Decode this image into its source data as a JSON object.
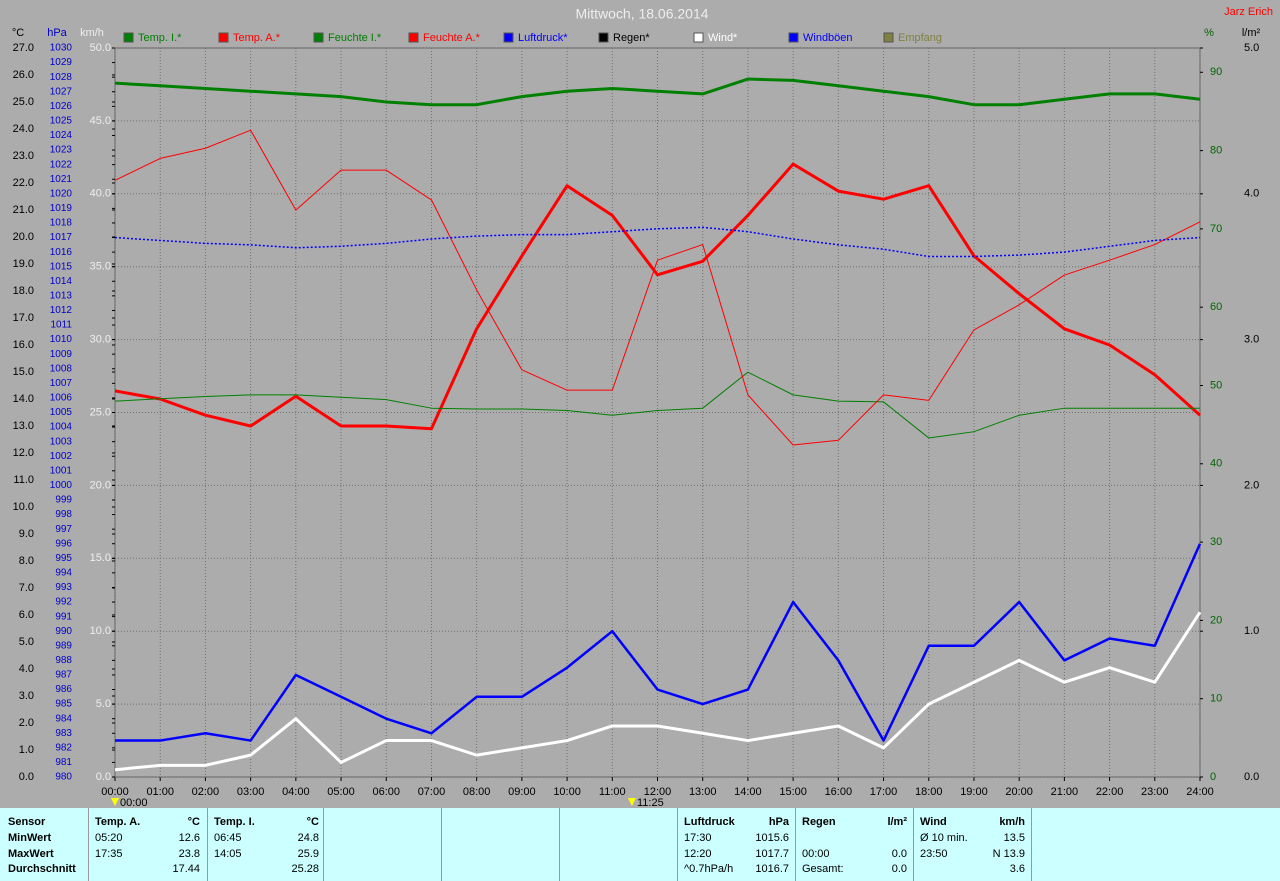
{
  "chart_data": {
    "type": "line",
    "title": "Mittwoch, 18.06.2014",
    "author": "Jarz Erich",
    "markers": [
      "00:00",
      "11:25"
    ],
    "xlim": [
      0,
      24
    ],
    "xticks": [
      {
        "value": 0,
        "label": "00:00"
      },
      {
        "value": 1,
        "label": "01:00"
      },
      {
        "value": 2,
        "label": "02:00"
      },
      {
        "value": 3,
        "label": "03:00"
      },
      {
        "value": 4,
        "label": "04:00"
      },
      {
        "value": 5,
        "label": "05:00"
      },
      {
        "value": 6,
        "label": "06:00"
      },
      {
        "value": 7,
        "label": "07:00"
      },
      {
        "value": 8,
        "label": "08:00"
      },
      {
        "value": 9,
        "label": "09:00"
      },
      {
        "value": 10,
        "label": "10:00"
      },
      {
        "value": 11,
        "label": "11:00"
      },
      {
        "value": 12,
        "label": "12:00"
      },
      {
        "value": 13,
        "label": "13:00"
      },
      {
        "value": 14,
        "label": "14:00"
      },
      {
        "value": 15,
        "label": "15:00"
      },
      {
        "value": 16,
        "label": "16:00"
      },
      {
        "value": 17,
        "label": "17:00"
      },
      {
        "value": 18,
        "label": "18:00"
      },
      {
        "value": 19,
        "label": "19:00"
      },
      {
        "value": 20,
        "label": "20:00"
      },
      {
        "value": 21,
        "label": "21:00"
      },
      {
        "value": 22,
        "label": "22:00"
      },
      {
        "value": 23,
        "label": "23:00"
      },
      {
        "value": 24,
        "label": "24:00"
      }
    ],
    "x": [
      0,
      1,
      2,
      3,
      4,
      5,
      6,
      7,
      8,
      9,
      10,
      11,
      12,
      13,
      14,
      15,
      16,
      17,
      18,
      19,
      20,
      21,
      22,
      23,
      24
    ],
    "grid": true,
    "grid_axis": "kmh",
    "yaxes": {
      "temp": {
        "unit": "°C",
        "side": "left",
        "color": "#000000",
        "lim": [
          0,
          27
        ],
        "ticks": [
          {
            "value": 0,
            "label": "0.0"
          },
          {
            "value": 1,
            "label": "1.0"
          },
          {
            "value": 2,
            "label": "2.0"
          },
          {
            "value": 3,
            "label": "3.0"
          },
          {
            "value": 4,
            "label": "4.0"
          },
          {
            "value": 5,
            "label": "5.0"
          },
          {
            "value": 6,
            "label": "6.0"
          },
          {
            "value": 7,
            "label": "7.0"
          },
          {
            "value": 8,
            "label": "8.0"
          },
          {
            "value": 9,
            "label": "9.0"
          },
          {
            "value": 10,
            "label": "10.0"
          },
          {
            "value": 11,
            "label": "11.0"
          },
          {
            "value": 12,
            "label": "12.0"
          },
          {
            "value": 13,
            "label": "13.0"
          },
          {
            "value": 14,
            "label": "14.0"
          },
          {
            "value": 15,
            "label": "15.0"
          },
          {
            "value": 16,
            "label": "16.0"
          },
          {
            "value": 17,
            "label": "17.0"
          },
          {
            "value": 18,
            "label": "18.0"
          },
          {
            "value": 19,
            "label": "19.0"
          },
          {
            "value": 20,
            "label": "20.0"
          },
          {
            "value": 21,
            "label": "21.0"
          },
          {
            "value": 22,
            "label": "22.0"
          },
          {
            "value": 23,
            "label": "23.0"
          },
          {
            "value": 24,
            "label": "24.0"
          },
          {
            "value": 25,
            "label": "25.0"
          },
          {
            "value": 26,
            "label": "26.0"
          },
          {
            "value": 27,
            "label": "27.0"
          }
        ]
      },
      "hpa": {
        "unit": "hPa",
        "side": "left",
        "color": "#0000cc",
        "lim": [
          980,
          1030
        ],
        "ticks": [
          980,
          981,
          982,
          983,
          984,
          985,
          986,
          987,
          988,
          989,
          990,
          991,
          992,
          993,
          994,
          995,
          996,
          997,
          998,
          999,
          1000,
          1001,
          1002,
          1003,
          1004,
          1005,
          1006,
          1007,
          1008,
          1009,
          1010,
          1011,
          1012,
          1013,
          1014,
          1015,
          1016,
          1017,
          1018,
          1019,
          1020,
          1021,
          1022,
          1023,
          1024,
          1025,
          1026,
          1027,
          1028,
          1029,
          1030
        ]
      },
      "kmh": {
        "unit": "km/h",
        "side": "left",
        "color": "#eeeeee",
        "lim": [
          0,
          50
        ],
        "ticks": [
          {
            "value": 0,
            "label": "0.0"
          },
          {
            "value": 5,
            "label": "5.0"
          },
          {
            "value": 10,
            "label": "10.0"
          },
          {
            "value": 15,
            "label": "15.0"
          },
          {
            "value": 20,
            "label": "20.0"
          },
          {
            "value": 25,
            "label": "25.0"
          },
          {
            "value": 30,
            "label": "30.0"
          },
          {
            "value": 35,
            "label": "35.0"
          },
          {
            "value": 40,
            "label": "40.0"
          },
          {
            "value": 45,
            "label": "45.0"
          },
          {
            "value": 50,
            "label": "50.0"
          }
        ]
      },
      "pct": {
        "unit": "%",
        "side": "right",
        "color": "#006600",
        "lim": [
          0,
          93.1
        ],
        "ticks": [
          0,
          10,
          20,
          30,
          40,
          50,
          60,
          70,
          80,
          90
        ]
      },
      "rain": {
        "unit": "l/m²",
        "side": "right",
        "color": "#000000",
        "lim": [
          0,
          5
        ],
        "ticks": [
          {
            "value": 0,
            "label": "0.0"
          },
          {
            "value": 1,
            "label": "1.0"
          },
          {
            "value": 2,
            "label": "2.0"
          },
          {
            "value": 3,
            "label": "3.0"
          },
          {
            "value": 4,
            "label": "4.0"
          },
          {
            "value": 5,
            "label": "5.0"
          }
        ]
      }
    },
    "series": [
      {
        "name": "Temp. I.*",
        "color": "#008000",
        "axis": "temp",
        "width": 3,
        "values": [
          25.7,
          25.6,
          25.5,
          25.4,
          25.3,
          25.2,
          25.0,
          24.9,
          24.9,
          25.2,
          25.4,
          25.5,
          25.4,
          25.3,
          25.85,
          25.8,
          25.6,
          25.4,
          25.2,
          24.9,
          24.9,
          25.1,
          25.3,
          25.3,
          25.1
        ]
      },
      {
        "name": "Temp. A.*",
        "color": "#ff0000",
        "axis": "temp",
        "width": 3,
        "values": [
          14.3,
          14.0,
          13.4,
          13.0,
          14.1,
          13.0,
          13.0,
          12.9,
          16.6,
          19.3,
          21.9,
          20.8,
          18.6,
          19.1,
          20.8,
          22.7,
          21.7,
          21.4,
          21.9,
          19.3,
          17.9,
          16.6,
          16.0,
          14.9,
          13.4
        ]
      },
      {
        "name": "Feuchte I.*",
        "color": "#008000",
        "axis": "pct",
        "width": 1,
        "values": [
          48.0,
          48.3,
          48.6,
          48.8,
          48.8,
          48.5,
          48.2,
          47.1,
          47.0,
          47.0,
          46.8,
          46.2,
          46.8,
          47.1,
          51.7,
          48.8,
          48.0,
          47.9,
          43.3,
          44.1,
          46.2,
          47.1,
          47.1,
          47.1,
          47.1
        ]
      },
      {
        "name": "Feuchte A.*",
        "color": "#ff0000",
        "axis": "pct",
        "width": 1,
        "values": [
          76.2,
          79.0,
          80.3,
          82.6,
          72.4,
          77.5,
          77.5,
          73.7,
          62.2,
          52.0,
          49.4,
          49.4,
          66.0,
          68.0,
          48.8,
          42.4,
          43.0,
          48.8,
          48.1,
          57.1,
          60.3,
          64.1,
          66.0,
          68.0,
          70.9
        ]
      },
      {
        "name": "Luftdruck*",
        "color": "#0000ff",
        "axis": "hpa",
        "width": 1.5,
        "dash": true,
        "values": [
          1017.0,
          1016.8,
          1016.6,
          1016.5,
          1016.3,
          1016.4,
          1016.6,
          1016.9,
          1017.1,
          1017.2,
          1017.2,
          1017.4,
          1017.6,
          1017.7,
          1017.4,
          1016.9,
          1016.5,
          1016.2,
          1015.7,
          1015.7,
          1015.8,
          1016.0,
          1016.4,
          1016.8,
          1017.0
        ]
      },
      {
        "name": "Regen*",
        "color": "#000000",
        "axis": "rain"
      },
      {
        "name": "Wind*",
        "color": "#ffffff",
        "axis": "kmh",
        "width": 3,
        "values": [
          0.5,
          0.8,
          0.8,
          1.5,
          4.0,
          1.0,
          2.5,
          2.5,
          1.5,
          2.0,
          2.5,
          3.5,
          3.5,
          3.0,
          2.5,
          3.0,
          3.5,
          2.0,
          5.0,
          6.5,
          8.0,
          6.5,
          7.5,
          6.5,
          11.3
        ]
      },
      {
        "name": "Windböen",
        "color": "#0000ff",
        "axis": "kmh",
        "width": 2.5,
        "values": [
          2.5,
          2.5,
          3.0,
          2.5,
          7.0,
          5.5,
          4.0,
          3.0,
          5.5,
          5.5,
          7.5,
          10.0,
          6.0,
          5.0,
          6.0,
          12.0,
          8.0,
          2.5,
          9.0,
          9.0,
          12.0,
          8.0,
          9.5,
          9.0,
          16.0
        ]
      },
      {
        "name": "Empfang",
        "color": "#808040",
        "axis": "rain"
      }
    ]
  },
  "stats": {
    "row_labels": [
      "Sensor",
      "MinWert",
      "MaxWert",
      "Durchschnitt"
    ],
    "columns": [
      {
        "name": "Temp. A.",
        "unit": "°C",
        "rows": [
          {
            "time": "05:20",
            "value": "12.6"
          },
          {
            "time": "17:35",
            "value": "23.8"
          },
          {
            "value": "17.44"
          }
        ]
      },
      {
        "name": "Temp. I.",
        "unit": "°C",
        "rows": [
          {
            "time": "06:45",
            "value": "24.8"
          },
          {
            "time": "14:05",
            "value": "25.9"
          },
          {
            "value": "25.28"
          }
        ]
      },
      {
        "name": "Luftdruck",
        "unit": "hPa",
        "rows": [
          {
            "time": "17:30",
            "value": "1015.6"
          },
          {
            "time": "12:20",
            "value": "1017.7"
          },
          {
            "time": "^0.7hPa/h",
            "value": "1016.7"
          }
        ]
      },
      {
        "name": "Regen",
        "unit": "l/m²",
        "rows": [
          null,
          {
            "time": "00:00",
            "value": "0.0"
          },
          {
            "time": "Gesamt:",
            "value": "0.0"
          }
        ]
      },
      {
        "name": "Wind",
        "unit": "km/h",
        "rows": [
          {
            "time": "Ø 10 min.",
            "value": "13.5"
          },
          {
            "time": "23:50",
            "value": "N 13.9"
          },
          {
            "value": "3.6"
          }
        ]
      }
    ]
  }
}
